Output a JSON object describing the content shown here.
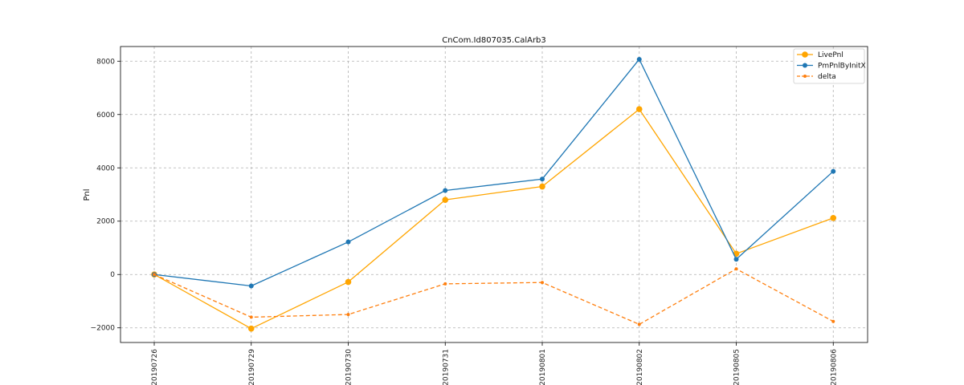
{
  "chart_data": {
    "type": "line",
    "title": "CnCom.Id807035.CalArb3",
    "xlabel": "",
    "ylabel": "Pnl",
    "categories": [
      "20190726",
      "20190729",
      "20190730",
      "20190731",
      "20190801",
      "20190802",
      "20190805",
      "20190806"
    ],
    "ylim": [
      -2550,
      8550
    ],
    "yticks": [
      -2000,
      0,
      2000,
      4000,
      6000,
      8000
    ],
    "yticklabels": [
      "−2000",
      "0",
      "2000",
      "4000",
      "6000",
      "8000"
    ],
    "grid": true,
    "legend_position": "top-right",
    "series": [
      {
        "name": "LivePnl",
        "color": "#ffa500",
        "line_style": "solid",
        "marker": "large-circle",
        "values": [
          0,
          -2030,
          -280,
          2800,
          3300,
          6200,
          780,
          2120
        ]
      },
      {
        "name": "PmPnlByInitX",
        "color": "#1f77b4",
        "line_style": "solid",
        "marker": "circle",
        "values": [
          0,
          -430,
          1220,
          3150,
          3580,
          8070,
          570,
          3870
        ]
      },
      {
        "name": "delta",
        "color": "#ff7f0e",
        "line_style": "dashed",
        "marker": "small-circle",
        "values": [
          0,
          -1600,
          -1500,
          -350,
          -300,
          -1870,
          210,
          -1760
        ]
      }
    ]
  }
}
